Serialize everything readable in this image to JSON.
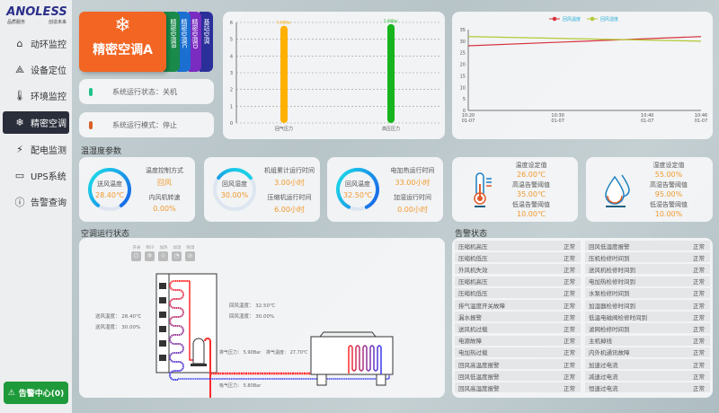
{
  "logo": {
    "brand": "ANOLESS",
    "slogan_left": "品质服务",
    "slogan_right": "创造未来"
  },
  "sidebar": {
    "items": [
      {
        "label": "动环监控",
        "icon": "home-icon",
        "glyph": "⌂"
      },
      {
        "label": "设备定位",
        "icon": "network-icon",
        "glyph": "⟁"
      },
      {
        "label": "环境监控",
        "icon": "thermometer-icon",
        "glyph": "🌡"
      },
      {
        "label": "精密空调",
        "icon": "snowflake-icon",
        "glyph": "❄",
        "active": true
      },
      {
        "label": "配电监测",
        "icon": "lightning-icon",
        "glyph": "⚡"
      },
      {
        "label": "UPS系统",
        "icon": "battery-icon",
        "glyph": "▭"
      },
      {
        "label": "告警查询",
        "icon": "alert-circle-icon",
        "glyph": "ⓘ"
      }
    ],
    "alarm_center": "告警中心(0)"
  },
  "tabs": [
    {
      "label": "精密空调A",
      "color": "#f26522",
      "active": true
    },
    {
      "label": "精密空调B",
      "color": "#1a8a4a"
    },
    {
      "label": "精密空调C",
      "color": "#1a6fd0"
    },
    {
      "label": "精密空调D",
      "color": "#7a2bc0"
    },
    {
      "label": "基站空调",
      "color": "#2a2f9a"
    }
  ],
  "status": {
    "run_label": "系统运行状态：",
    "run_value": "关机",
    "run_color": "#1fc48a",
    "mode_label": "系统运行模式：",
    "mode_value": "停止",
    "mode_color": "#d9602a"
  },
  "chart_data": [
    {
      "type": "bar",
      "categories": [
        "回气压力",
        "高压压力"
      ],
      "values": [
        5.8,
        5.9
      ],
      "data_labels": [
        "5.80Bar",
        "5.90Bar"
      ],
      "colors": [
        "#ffb000",
        "#16b51d"
      ],
      "ylim": [
        0,
        6
      ],
      "yticks": [
        0,
        1,
        2,
        3,
        4,
        5,
        6
      ],
      "grid": true
    },
    {
      "type": "line",
      "x": [
        "10:20 01-07",
        "10:30 01-07",
        "10:40 01-07",
        "10:46 01-07"
      ],
      "series": [
        {
          "name": "回风温度",
          "color": "#d8323c",
          "points": [
            [
              "10:20",
              28
            ],
            [
              "10:46",
              32
            ]
          ]
        },
        {
          "name": "回风湿度",
          "color": "#b4c832",
          "points": [
            [
              "10:20",
              32
            ],
            [
              "10:46",
              30
            ]
          ]
        }
      ],
      "ylim": [
        0,
        35
      ],
      "yticks": [
        0,
        5,
        10,
        15,
        20,
        25,
        30,
        35
      ],
      "legend": "top-center"
    }
  ],
  "params": {
    "title": "温湿度参数",
    "c1": {
      "gauge_label": "送风温度",
      "gauge_value": "28.40℃",
      "gauge_fill": 0.8,
      "k1": "温度控制方式",
      "v1": "回风",
      "k2": "内风机转速",
      "v2": "0.00%"
    },
    "c2": {
      "gauge_label": "回风湿度",
      "gauge_value": "30.00%",
      "gauge_fill": 0.3,
      "k1": "机组累计运行时间",
      "v1": "3.00小时",
      "k2": "压缩机运行时间",
      "v2": "6.00小时"
    },
    "c3": {
      "gauge_label": "回风温度",
      "gauge_value": "32.50℃",
      "gauge_fill": 0.85,
      "k1": "电加热运行时间",
      "v1": "33.00小时",
      "k2": "加湿运行时间",
      "v2": "0.00小时"
    },
    "c4": {
      "k1": "温度设定值",
      "v1": "26.00℃",
      "k2": "高温告警阈值",
      "v2": "35.00℃",
      "k3": "低温告警阈值",
      "v3": "10.00℃"
    },
    "c5": {
      "k1": "湿度设定值",
      "v1": "55.00%",
      "k2": "高湿告警阈值",
      "v2": "95.00%",
      "k3": "低湿告警阈值",
      "v3": "10.00%"
    }
  },
  "run": {
    "title": "空调运行状态",
    "controls": [
      {
        "label": "开关",
        "glyph": "⏻"
      },
      {
        "label": "制冷",
        "glyph": "❄"
      },
      {
        "label": "加热",
        "glyph": "☼"
      },
      {
        "label": "加湿",
        "glyph": "◔"
      },
      {
        "label": "除湿",
        "glyph": "⊘"
      }
    ],
    "supply_temp": "送风温度：  28.40℃",
    "supply_hum": "送风湿度：  30.00%",
    "return_temp": "回风温度：  32.50℃",
    "return_hum": "回风湿度：  30.00%",
    "discharge_pressure": "排气压力：  5.90Bar",
    "discharge_temp": "排气温度：  27.70℃",
    "suction_pressure": "吸气压力：  5.80Bar"
  },
  "alarms": {
    "title": "告警状态",
    "rows": [
      [
        "压缩机高压",
        "正常",
        "回风低湿度报警",
        "正常"
      ],
      [
        "压缩机低压",
        "正常",
        "压机检修时间到",
        "正常"
      ],
      [
        "外风机失效",
        "正常",
        "送风机检修时间到",
        "正常"
      ],
      [
        "压缩机高压",
        "正常",
        "电加热检修时间到",
        "正常"
      ],
      [
        "压缩机低压",
        "正常",
        "水泵检修时间到",
        "正常"
      ],
      [
        "排气温度开关故障",
        "正常",
        "加湿器检修时间到",
        "正常"
      ],
      [
        "漏水报警",
        "正常",
        "低温电磁阀检修时间到",
        "正常"
      ],
      [
        "送风机过载",
        "正常",
        "滤网检修时间到",
        "正常"
      ],
      [
        "电源故障",
        "正常",
        "主机掉线",
        "正常"
      ],
      [
        "电加热过载",
        "正常",
        "内外机通讯故障",
        "正常"
      ],
      [
        "回风高温度报警",
        "正常",
        "加速过电流",
        "正常"
      ],
      [
        "回风低温度报警",
        "正常",
        "减速过电流",
        "正常"
      ],
      [
        "回风高湿度报警",
        "正常",
        "恒速过电流",
        "正常"
      ]
    ]
  }
}
